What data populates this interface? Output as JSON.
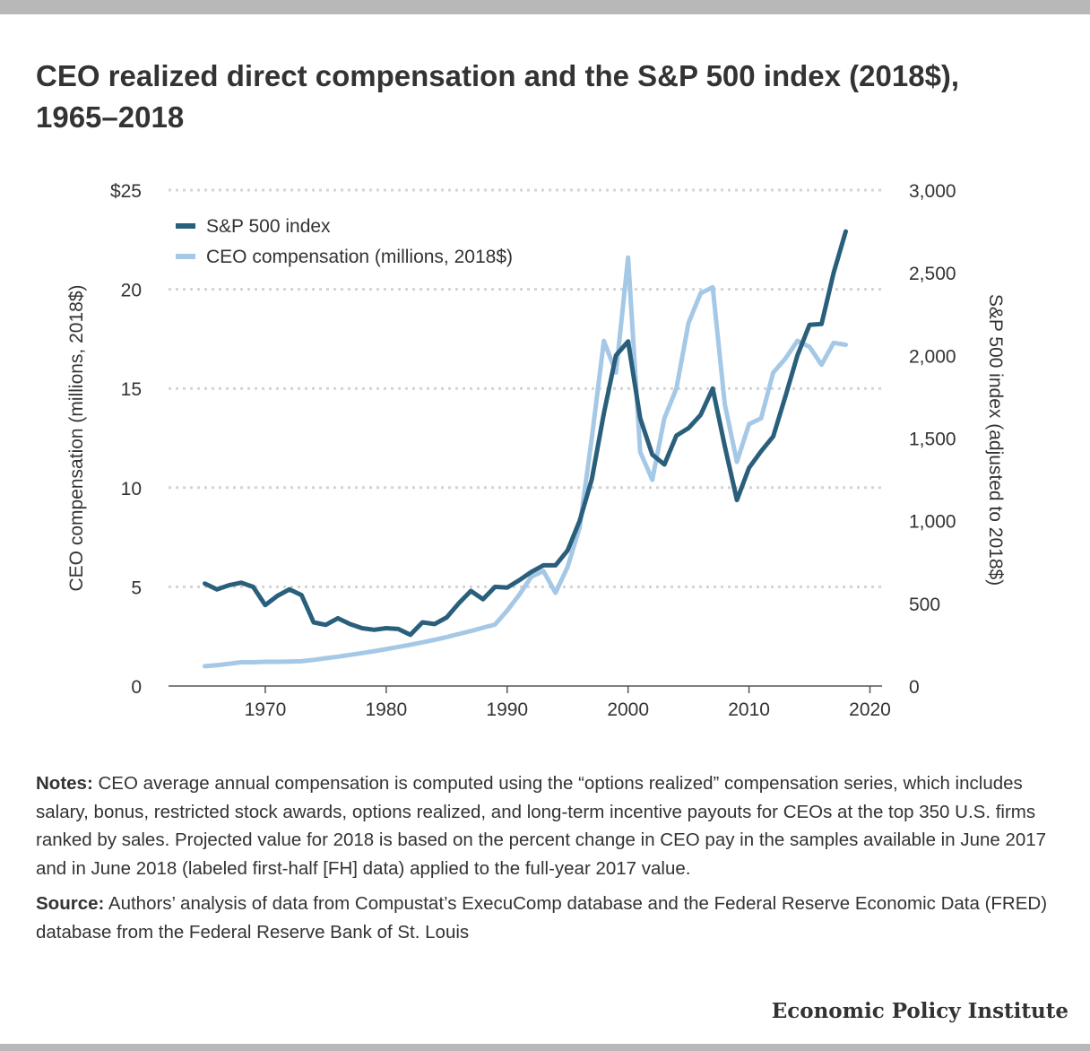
{
  "title": "CEO realized direct compensation and the S&P 500 index (2018$), 1965–2018",
  "colors": {
    "sp500": "#2a5f7c",
    "ceo": "#a4c8e6",
    "grid": "#d4d4d4",
    "text": "#333333"
  },
  "chart_data": {
    "type": "line",
    "title": "CEO realized direct compensation and the S&P 500 index (2018$), 1965–2018",
    "ylabel": "CEO compensation (millions, 2018$)",
    "y2label": "S&P 500 index (adjusted to 2018$)",
    "xlim": [
      1962,
      2021
    ],
    "ylim": [
      0,
      25
    ],
    "y2lim": [
      0,
      3000
    ],
    "x_ticks": [
      1970,
      1980,
      1990,
      2000,
      2010,
      2020
    ],
    "x_tick_labels": [
      "1970",
      "1980",
      "1990",
      "2000",
      "2010",
      "2020"
    ],
    "y_ticks": [
      0,
      5,
      10,
      15,
      20,
      25
    ],
    "y_tick_labels": [
      "0",
      "5",
      "10",
      "15",
      "20",
      "$25"
    ],
    "y2_ticks": [
      0,
      500,
      1000,
      1500,
      2000,
      2500,
      3000
    ],
    "y2_tick_labels": [
      "0",
      "500",
      "1,000",
      "1,500",
      "2,000",
      "2,500",
      "3,000"
    ],
    "grid": true,
    "legend_position": "top-left",
    "x": [
      1965,
      1966,
      1967,
      1968,
      1969,
      1970,
      1971,
      1972,
      1973,
      1974,
      1975,
      1976,
      1977,
      1978,
      1979,
      1980,
      1981,
      1982,
      1983,
      1984,
      1985,
      1986,
      1987,
      1988,
      1989,
      1990,
      1991,
      1992,
      1993,
      1994,
      1995,
      1996,
      1997,
      1998,
      1999,
      2000,
      2001,
      2002,
      2003,
      2004,
      2005,
      2006,
      2007,
      2008,
      2009,
      2010,
      2011,
      2012,
      2013,
      2014,
      2015,
      2016,
      2017,
      2018
    ],
    "series": [
      {
        "name": "S&P 500 index",
        "axis": "right",
        "values": [
          620,
          585,
          610,
          625,
          600,
          490,
          545,
          585,
          550,
          385,
          370,
          410,
          375,
          350,
          340,
          350,
          345,
          310,
          385,
          375,
          415,
          500,
          575,
          525,
          600,
          595,
          640,
          690,
          730,
          730,
          820,
          1000,
          1250,
          1650,
          2000,
          2085,
          1620,
          1400,
          1340,
          1515,
          1560,
          1640,
          1800,
          1450,
          1125,
          1320,
          1420,
          1510,
          1750,
          2000,
          2185,
          2190,
          2500,
          2750
        ]
      },
      {
        "name": "CEO compensation (millions, 2018$)",
        "axis": "left",
        "values": [
          1.0,
          1.05,
          1.12,
          1.2,
          1.2,
          1.22,
          1.22,
          1.23,
          1.25,
          1.32,
          1.4,
          1.48,
          1.57,
          1.66,
          1.76,
          1.86,
          1.97,
          2.08,
          2.2,
          2.33,
          2.47,
          2.62,
          2.77,
          2.94,
          3.1,
          3.8,
          4.6,
          5.5,
          5.8,
          4.7,
          6.0,
          8.0,
          12.5,
          17.4,
          15.8,
          21.6,
          11.8,
          10.4,
          13.5,
          15.0,
          18.3,
          19.8,
          20.1,
          14.2,
          11.3,
          13.2,
          13.5,
          15.8,
          16.5,
          17.4,
          17.1,
          16.2,
          17.3,
          17.2
        ]
      }
    ]
  },
  "notes": {
    "notes_label": "Notes:",
    "notes_text": "CEO average annual compensation is computed using the “options realized” compensation series, which includes salary, bonus, restricted stock awards, options realized, and long-term incentive payouts for CEOs at the top 350 U.S. firms ranked by sales. Projected value for 2018 is based on the percent change in CEO pay in the samples available in June 2017 and in June 2018 (labeled first-half [FH] data) applied to the full-year 2017 value.",
    "source_label": "Source:",
    "source_text": "Authors’ analysis of data from Compustat’s ExecuComp database and the Federal Reserve Economic Data (FRED) database from the Federal Reserve Bank of St. Louis"
  },
  "brand": "Economic Policy Institute"
}
